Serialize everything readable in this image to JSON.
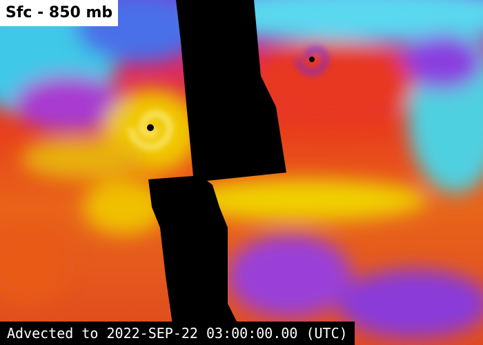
{
  "title": "Sfc - 850 mb",
  "footer": "Advected to 2022-SEP-22 03:00:00.00 (UTC)"
}
